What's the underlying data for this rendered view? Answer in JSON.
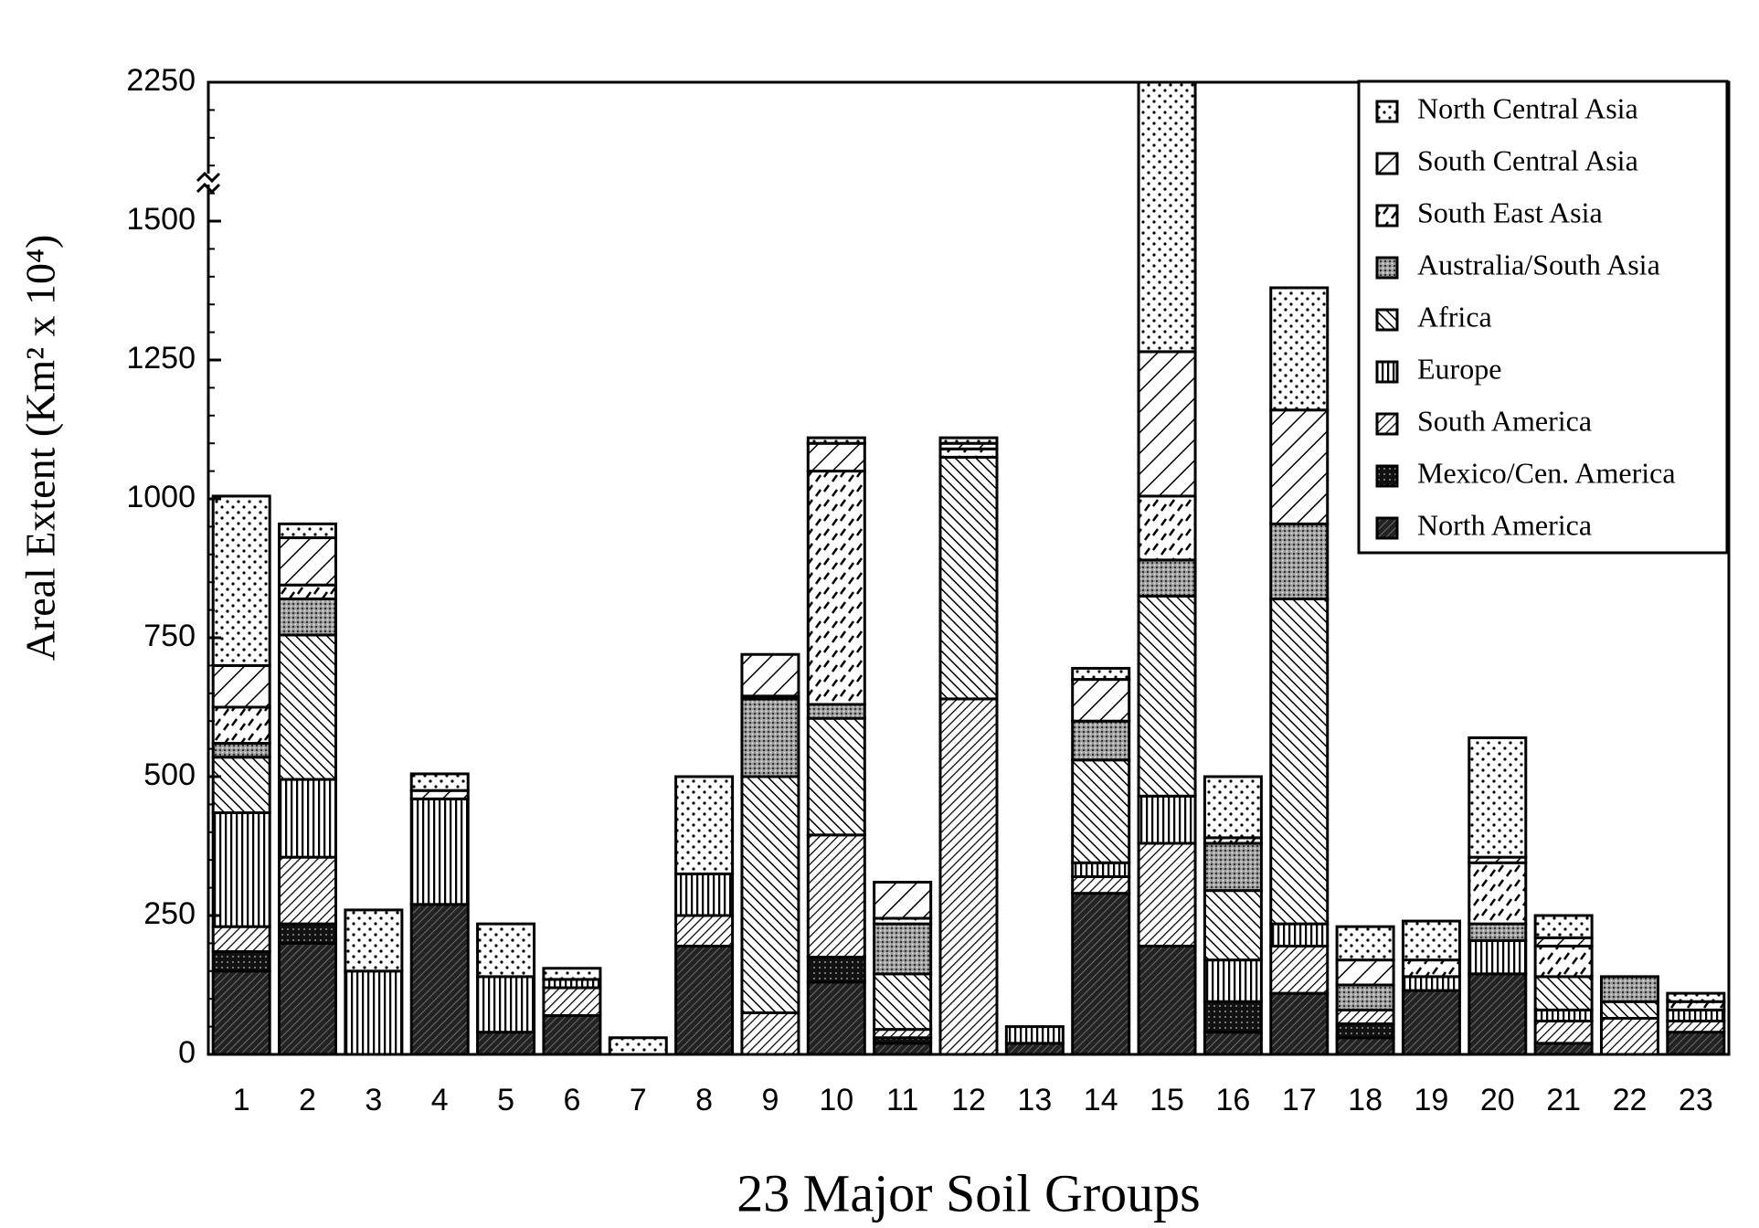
{
  "chart_data": {
    "type": "stacked_bar",
    "x_label": "23 Major Soil Groups",
    "y_label": "Areal Extent (Km² x 10⁴)",
    "categories": [
      "1",
      "2",
      "3",
      "4",
      "5",
      "6",
      "7",
      "8",
      "9",
      "10",
      "11",
      "12",
      "13",
      "14",
      "15",
      "16",
      "17",
      "18",
      "19",
      "20",
      "21",
      "22",
      "23"
    ],
    "ylim": [
      0,
      2250
    ],
    "yticks": [
      0,
      250,
      500,
      750,
      1000,
      1250,
      1500,
      2250
    ],
    "axis_break": true,
    "legend": "top-right",
    "series": [
      {
        "name": "North America",
        "color": "#000000",
        "pattern": "dark-hatch",
        "values": [
          150,
          200,
          0,
          270,
          40,
          70,
          0,
          195,
          0,
          130,
          20,
          0,
          20,
          290,
          195,
          40,
          110,
          30,
          115,
          145,
          20,
          0,
          40
        ]
      },
      {
        "name": "Mexico/Cen. America",
        "color": "#000000",
        "pattern": "dark-grid",
        "values": [
          35,
          35,
          0,
          0,
          0,
          0,
          0,
          0,
          0,
          45,
          10,
          0,
          0,
          0,
          0,
          55,
          0,
          25,
          0,
          0,
          0,
          0,
          0
        ]
      },
      {
        "name": "South America",
        "color": "#000000",
        "pattern": "fine-slash",
        "values": [
          45,
          120,
          0,
          0,
          0,
          50,
          0,
          55,
          75,
          220,
          15,
          640,
          0,
          30,
          185,
          0,
          85,
          25,
          0,
          0,
          40,
          65,
          20
        ]
      },
      {
        "name": "Europe",
        "color": "#000000",
        "pattern": "vertical",
        "values": [
          205,
          140,
          150,
          190,
          100,
          15,
          0,
          75,
          0,
          0,
          0,
          0,
          30,
          25,
          85,
          75,
          40,
          0,
          25,
          60,
          20,
          0,
          20
        ]
      },
      {
        "name": "Africa",
        "color": "#000000",
        "pattern": "backslash",
        "values": [
          100,
          260,
          0,
          0,
          0,
          0,
          0,
          0,
          425,
          210,
          100,
          435,
          0,
          185,
          360,
          125,
          585,
          0,
          0,
          0,
          60,
          30,
          0
        ]
      },
      {
        "name": "Australia/South Asia",
        "color": "#000000",
        "pattern": "crosshatch",
        "values": [
          25,
          65,
          0,
          0,
          0,
          0,
          0,
          0,
          140,
          25,
          90,
          0,
          0,
          70,
          65,
          85,
          135,
          45,
          0,
          30,
          0,
          45,
          0
        ]
      },
      {
        "name": "South East Asia",
        "color": "#000000",
        "pattern": "dashes",
        "values": [
          65,
          25,
          0,
          0,
          0,
          0,
          0,
          0,
          5,
          420,
          10,
          15,
          0,
          0,
          115,
          10,
          0,
          0,
          30,
          110,
          55,
          0,
          15
        ]
      },
      {
        "name": "South Central Asia",
        "color": "#000000",
        "pattern": "wide-slash",
        "values": [
          75,
          85,
          0,
          15,
          0,
          0,
          0,
          0,
          75,
          50,
          65,
          10,
          0,
          75,
          260,
          0,
          205,
          45,
          0,
          10,
          15,
          0,
          0
        ]
      },
      {
        "name": "North Central Asia",
        "color": "#000000",
        "pattern": "dots",
        "values": [
          305,
          25,
          110,
          30,
          95,
          20,
          30,
          175,
          0,
          10,
          0,
          10,
          0,
          20,
          985,
          110,
          220,
          60,
          70,
          215,
          40,
          0,
          15
        ]
      }
    ]
  }
}
